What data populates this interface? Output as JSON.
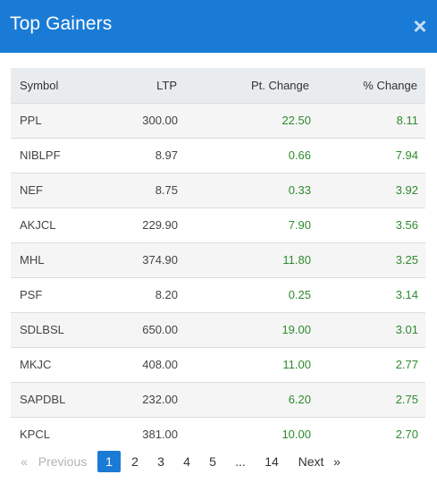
{
  "modal": {
    "title": "Top Gainers",
    "close_symbol": "×"
  },
  "table": {
    "headers": {
      "symbol": "Symbol",
      "ltp": "LTP",
      "pt_change": "Pt. Change",
      "pct_change": "% Change"
    },
    "rows": [
      {
        "symbol": "PPL",
        "ltp": "300.00",
        "pt_change": "22.50",
        "pct_change": "8.11"
      },
      {
        "symbol": "NIBLPF",
        "ltp": "8.97",
        "pt_change": "0.66",
        "pct_change": "7.94"
      },
      {
        "symbol": "NEF",
        "ltp": "8.75",
        "pt_change": "0.33",
        "pct_change": "3.92"
      },
      {
        "symbol": "AKJCL",
        "ltp": "229.90",
        "pt_change": "7.90",
        "pct_change": "3.56"
      },
      {
        "symbol": "MHL",
        "ltp": "374.90",
        "pt_change": "11.80",
        "pct_change": "3.25"
      },
      {
        "symbol": "PSF",
        "ltp": "8.20",
        "pt_change": "0.25",
        "pct_change": "3.14"
      },
      {
        "symbol": "SDLBSL",
        "ltp": "650.00",
        "pt_change": "19.00",
        "pct_change": "3.01"
      },
      {
        "symbol": "MKJC",
        "ltp": "408.00",
        "pt_change": "11.00",
        "pct_change": "2.77"
      },
      {
        "symbol": "SAPDBL",
        "ltp": "232.00",
        "pt_change": "6.20",
        "pct_change": "2.75"
      },
      {
        "symbol": "KPCL",
        "ltp": "381.00",
        "pt_change": "10.00",
        "pct_change": "2.70"
      }
    ]
  },
  "pagination": {
    "prev_arrow": "«",
    "prev_label": "Previous",
    "pages": [
      "1",
      "2",
      "3",
      "4",
      "5"
    ],
    "ellipsis": "...",
    "last_page": "14",
    "next_label": "Next",
    "next_arrow": "»",
    "current_page": "1"
  },
  "colors": {
    "header_bg": "#1a7bd6",
    "positive": "#2e8b2e",
    "active_page": "#1a7bd6"
  }
}
